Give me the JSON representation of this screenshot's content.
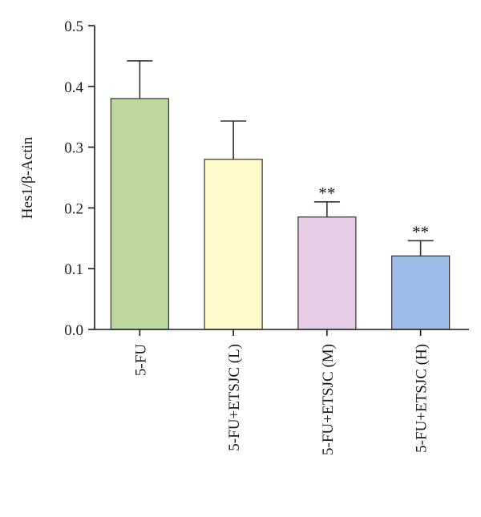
{
  "chart_data": {
    "type": "bar",
    "categories": [
      "5-FU",
      "5-FU+ETSJC (L)",
      "5-FU+ETSJC (M)",
      "5-FU+ETSJC (H)"
    ],
    "values": [
      0.38,
      0.28,
      0.185,
      0.121
    ],
    "errors": [
      0.062,
      0.063,
      0.025,
      0.025
    ],
    "annotations": [
      "",
      "",
      "**",
      "**"
    ],
    "colors": [
      "#bcd89d",
      "#fdf9c8",
      "#e6cce4",
      "#9cbbe6"
    ],
    "ylabel": "Hes1/β-Actin",
    "ylim": [
      0,
      0.5
    ],
    "yticks": [
      "0.0",
      "0.1",
      "0.2",
      "0.3",
      "0.4",
      "0.5"
    ],
    "grid": false
  }
}
